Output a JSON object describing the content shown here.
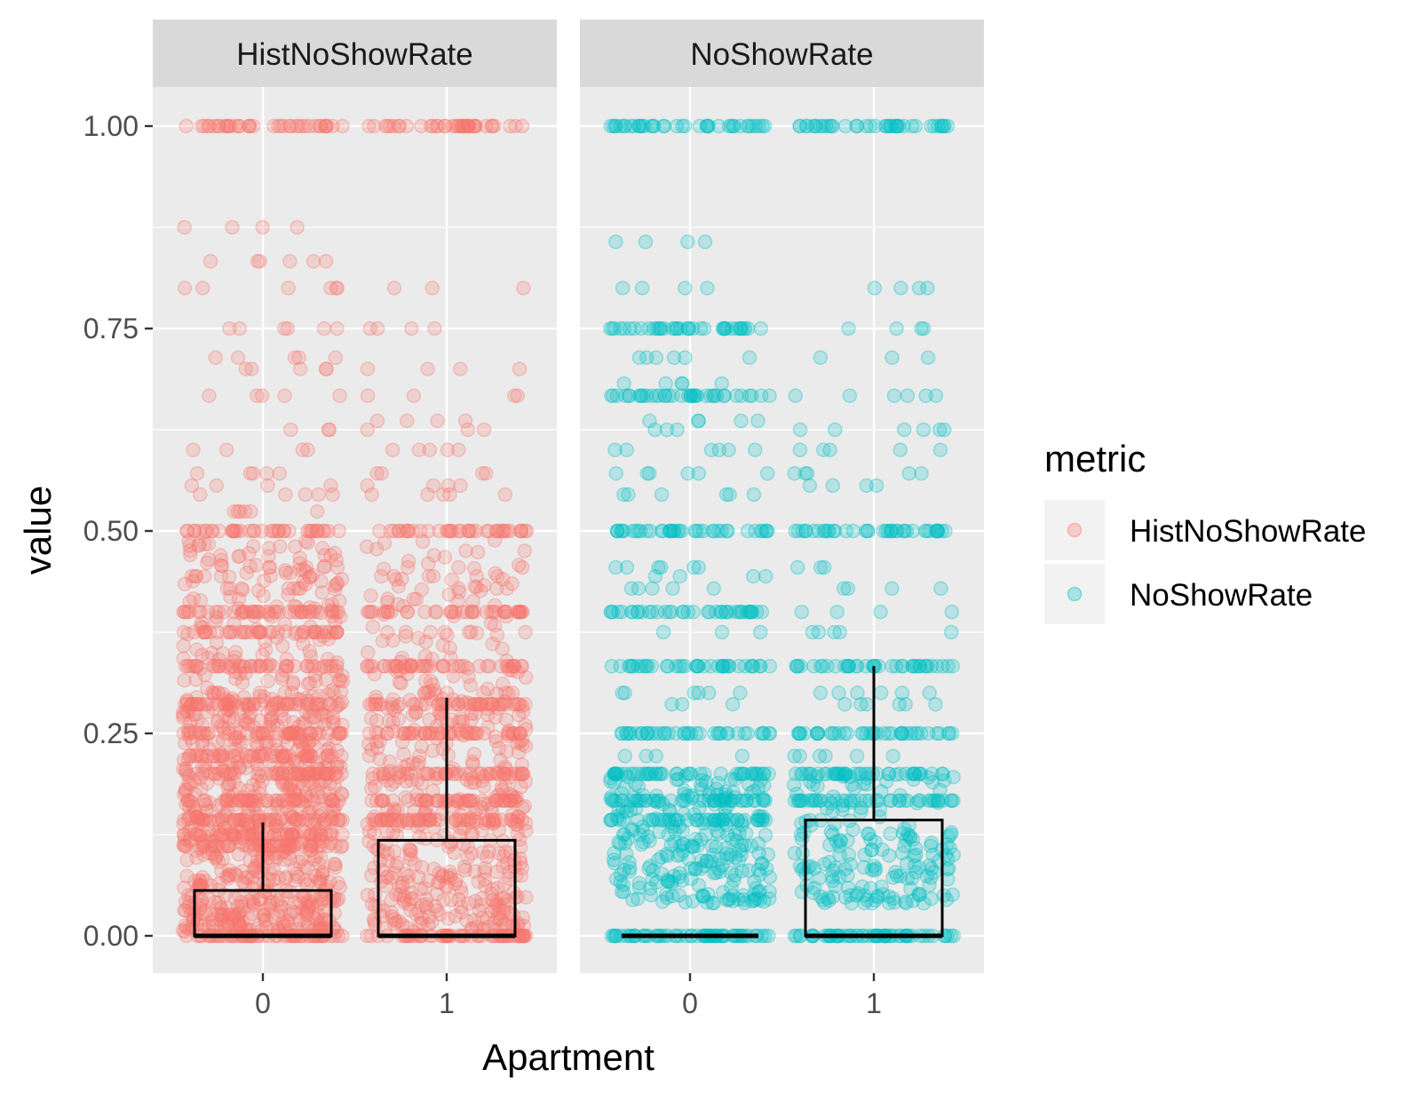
{
  "chart_data": {
    "type": "scatter",
    "subtype": "faceted jitter points with boxplot overlay",
    "xlabel": "Apartment",
    "ylabel": "value",
    "ylim": [
      -0.05,
      1.05
    ],
    "yticks": [
      "0.00",
      "0.25",
      "0.50",
      "0.75",
      "1.00"
    ],
    "yticks_values": [
      0,
      0.25,
      0.5,
      0.75,
      1.0
    ],
    "categories": [
      "0",
      "1"
    ],
    "grid": true,
    "legend": {
      "title": "metric",
      "position": "right",
      "entries": [
        {
          "name": "HistNoShowRate",
          "color": "#F8766D"
        },
        {
          "name": "NoShowRate",
          "color": "#00BFC4"
        }
      ]
    },
    "facets": [
      {
        "title": "HistNoShowRate",
        "color": "#F8766D",
        "groups": [
          {
            "x": "0",
            "box": {
              "min": 0,
              "q1": 0,
              "median": 0,
              "q3": 0.056,
              "whisker_high": 0.14
            },
            "dense_levels": [
              0,
              0.111,
              0.125,
              0.143,
              0.167,
              0.2,
              0.222,
              0.25,
              0.286,
              0.333,
              0.375,
              0.4,
              0.5,
              1.0
            ],
            "sparse_values": [
              0.875,
              0.833,
              0.8,
              0.75,
              0.714,
              0.7,
              0.667,
              0.625,
              0.6,
              0.571,
              0.556,
              0.545,
              0.524,
              0.47,
              0.455,
              0.444,
              0.429,
              0.3
            ]
          },
          {
            "x": "1",
            "box": {
              "min": 0,
              "q1": 0,
              "median": 0,
              "q3": 0.118,
              "whisker_high": 0.294
            },
            "dense_levels": [
              0,
              0.143,
              0.167,
              0.2,
              0.25,
              0.286,
              0.333,
              0.4,
              0.5,
              1.0
            ],
            "sparse_values": [
              0.8,
              0.75,
              0.7,
              0.667,
              0.636,
              0.625,
              0.6,
              0.571,
              0.556,
              0.545,
              0.455,
              0.444,
              0.429,
              0.375,
              0.3
            ]
          }
        ]
      },
      {
        "title": "NoShowRate",
        "color": "#00BFC4",
        "groups": [
          {
            "x": "0",
            "box": {
              "min": 0,
              "q1": 0,
              "median": 0,
              "q3": 0,
              "whisker_high": 0
            },
            "dense_levels": [
              0,
              0.143,
              0.167,
              0.2,
              0.25,
              0.333,
              0.4,
              0.5,
              0.667,
              0.75,
              1.0
            ],
            "sparse_values": [
              0.857,
              0.8,
              0.714,
              0.682,
              0.636,
              0.625,
              0.6,
              0.571,
              0.545,
              0.455,
              0.444,
              0.429,
              0.375,
              0.3,
              0.286,
              0.222,
              0.2,
              0.125,
              0.111,
              0.1,
              0.083,
              0.067,
              0.05
            ]
          },
          {
            "x": "1",
            "box": {
              "min": 0,
              "q1": 0,
              "median": 0,
              "q3": 0.143,
              "whisker_high": 0.333
            },
            "dense_levels": [
              0,
              0.167,
              0.2,
              0.25,
              0.333,
              0.5,
              1.0
            ],
            "sparse_values": [
              0.8,
              0.75,
              0.714,
              0.667,
              0.625,
              0.6,
              0.571,
              0.556,
              0.455,
              0.429,
              0.4,
              0.375,
              0.3,
              0.286,
              0.222,
              0.125,
              0.111,
              0.1,
              0.083,
              0.071,
              0.05
            ]
          }
        ]
      }
    ]
  }
}
